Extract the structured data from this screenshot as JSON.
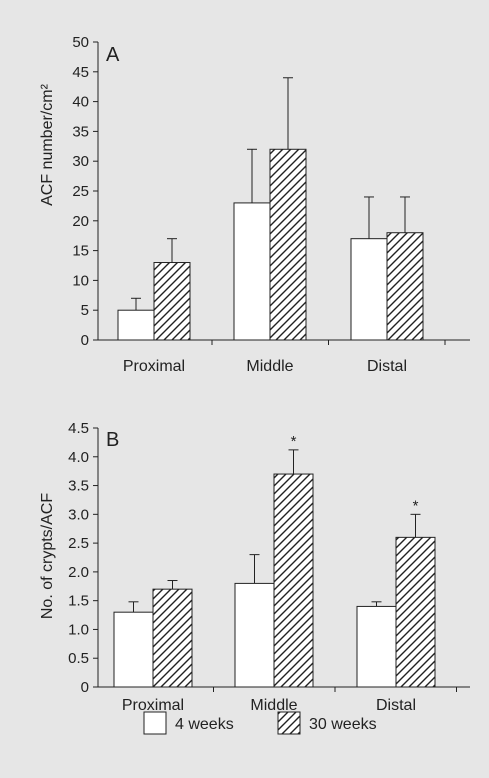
{
  "chart_data": [
    {
      "type": "bar",
      "panel_label": "A",
      "ylabel": "ACF number/cm²",
      "categories": [
        "Proximal",
        "Middle",
        "Distal"
      ],
      "ylim": [
        0,
        50
      ],
      "yticks": [
        0,
        5,
        10,
        15,
        20,
        25,
        30,
        35,
        40,
        45,
        50
      ],
      "ytick_labels": [
        "0",
        "5",
        "10",
        "15",
        "20",
        "25",
        "30",
        "35",
        "40",
        "45",
        "50"
      ],
      "series": [
        {
          "name": "4 weeks",
          "values": [
            5,
            23,
            17
          ],
          "errors": [
            2,
            9,
            7
          ],
          "pattern": "open"
        },
        {
          "name": "30 weeks",
          "values": [
            13,
            32,
            18
          ],
          "errors": [
            4,
            12,
            6
          ],
          "pattern": "hatched"
        }
      ],
      "significance": [
        "",
        "",
        ""
      ],
      "grid": false
    },
    {
      "type": "bar",
      "panel_label": "B",
      "ylabel": "No. of crypts/ACF",
      "categories": [
        "Proximal",
        "Middle",
        "Distal"
      ],
      "ylim": [
        0,
        4.5
      ],
      "yticks": [
        0,
        0.5,
        1.0,
        1.5,
        2.0,
        2.5,
        3.0,
        3.5,
        4.0,
        4.5
      ],
      "ytick_labels": [
        "0",
        "0.5",
        "1.0",
        "1.5",
        "2.0",
        "2.5",
        "3.0",
        "3.5",
        "4.0",
        "4.5"
      ],
      "series": [
        {
          "name": "4 weeks",
          "values": [
            1.3,
            1.8,
            1.4
          ],
          "errors": [
            0.18,
            0.5,
            0.08
          ],
          "pattern": "open"
        },
        {
          "name": "30 weeks",
          "values": [
            1.7,
            3.7,
            2.6
          ],
          "errors": [
            0.15,
            0.42,
            0.4
          ],
          "pattern": "hatched"
        }
      ],
      "significance": [
        "",
        "*",
        "*"
      ],
      "grid": false
    }
  ],
  "legend": {
    "placement": "bottom-center",
    "items": [
      {
        "label": "4 weeks",
        "pattern": "open"
      },
      {
        "label": "30 weeks",
        "pattern": "hatched"
      }
    ]
  },
  "colors": {
    "background": "#e6e6e6",
    "bar_fill": "#ffffff",
    "stroke": "#222222"
  }
}
